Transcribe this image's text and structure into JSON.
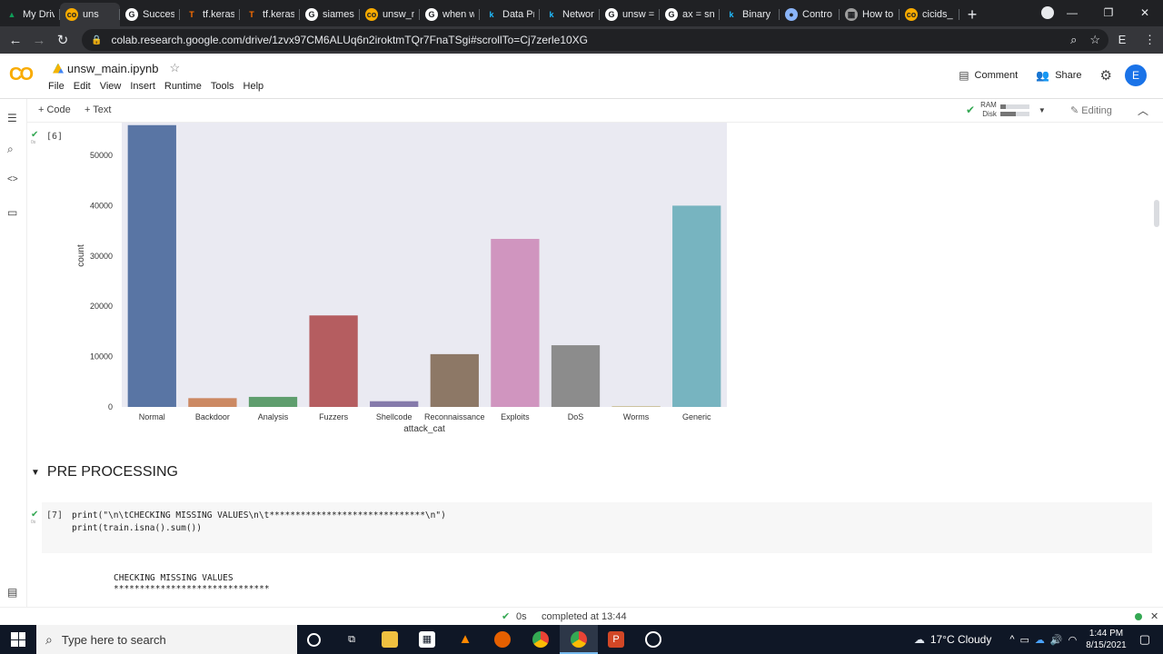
{
  "browser": {
    "tabs": [
      {
        "label": "My Driv",
        "fav_color": "#0f9d58",
        "fav_glyph": "▲"
      },
      {
        "label": "uns",
        "fav_color": "#f9ab00",
        "fav_glyph": "co",
        "active": true
      },
      {
        "label": "Succes",
        "fav_color": "#ffffff",
        "fav_glyph": "G"
      },
      {
        "label": "tf.keras",
        "fav_color": "#ff6f00",
        "fav_glyph": "T"
      },
      {
        "label": "tf.keras",
        "fav_color": "#ff6f00",
        "fav_glyph": "T"
      },
      {
        "label": "siames",
        "fav_color": "#ffffff",
        "fav_glyph": "G"
      },
      {
        "label": "unsw_n",
        "fav_color": "#f9ab00",
        "fav_glyph": "co"
      },
      {
        "label": "when w",
        "fav_color": "#ffffff",
        "fav_glyph": "G"
      },
      {
        "label": "Data Pr",
        "fav_color": "#20beff",
        "fav_glyph": "k"
      },
      {
        "label": "Networ",
        "fav_color": "#20beff",
        "fav_glyph": "k"
      },
      {
        "label": "unsw =",
        "fav_color": "#ffffff",
        "fav_glyph": "G"
      },
      {
        "label": "ax = sn",
        "fav_color": "#ffffff",
        "fav_glyph": "G"
      },
      {
        "label": "Binary",
        "fav_color": "#20beff",
        "fav_glyph": "k"
      },
      {
        "label": "Contro",
        "fav_color": "#8ab4f8",
        "fav_glyph": "●"
      },
      {
        "label": "How to",
        "fav_color": "#9e9e9e",
        "fav_glyph": "▦"
      },
      {
        "label": "cicids_",
        "fav_color": "#f9ab00",
        "fav_glyph": "co"
      }
    ],
    "new_tab": "+",
    "url": "colab.research.google.com/drive/1zvx97CM6ALUq6n2iroktmTQr7FnaTSgi#scrollTo=Cj7zerle10XG",
    "profile_letter": "E"
  },
  "colab": {
    "logo": "CO",
    "notebook_title": "unsw_main.ipynb",
    "menu": [
      "File",
      "Edit",
      "View",
      "Insert",
      "Runtime",
      "Tools",
      "Help"
    ],
    "comment_label": "Comment",
    "share_label": "Share",
    "avatar_letter": "E",
    "toolbar": {
      "add_code": "+ Code",
      "add_text": "+ Text",
      "ram_label": "RAM",
      "disk_label": "Disk",
      "ram_level": 0.2,
      "disk_level": 0.55,
      "editing_label": "Editing"
    }
  },
  "cells": {
    "cell6_exec": "[6]",
    "cell7_exec": "[7]",
    "section_title": "PRE PROCESSING",
    "code_line1": "print(\"\\n\\tCHECKING MISSING VALUES\\n\\t******************************\\n\")",
    "code_line2": "print(train.isna().sum())",
    "output_line1": "CHECKING MISSING VALUES",
    "output_line2": "******************************"
  },
  "chart_data": {
    "type": "bar",
    "categories": [
      "Normal",
      "Backdoor",
      "Analysis",
      "Fuzzers",
      "Shellcode",
      "Reconnaissance",
      "Exploits",
      "DoS",
      "Worms",
      "Generic"
    ],
    "values": [
      56000,
      1746,
      2000,
      18184,
      1133,
      10491,
      33393,
      12264,
      130,
      40000
    ],
    "colors": [
      "#5975a4",
      "#cc8963",
      "#5f9e6e",
      "#b55d60",
      "#857aab",
      "#8d7866",
      "#d095bf",
      "#8c8c8c",
      "#c1b37f",
      "#77b4c0"
    ],
    "xlabel": "attack_cat",
    "ylabel": "count",
    "yticks": [
      0,
      10000,
      20000,
      30000,
      40000,
      50000
    ],
    "ylim": [
      0,
      56500
    ],
    "grid": false
  },
  "statusbar": {
    "elapsed": "0s",
    "completed": "completed at 13:44"
  },
  "taskbar": {
    "search_placeholder": "Type here to search",
    "weather": "17°C  Cloudy",
    "time": "1:44 PM",
    "date": "8/15/2021"
  }
}
